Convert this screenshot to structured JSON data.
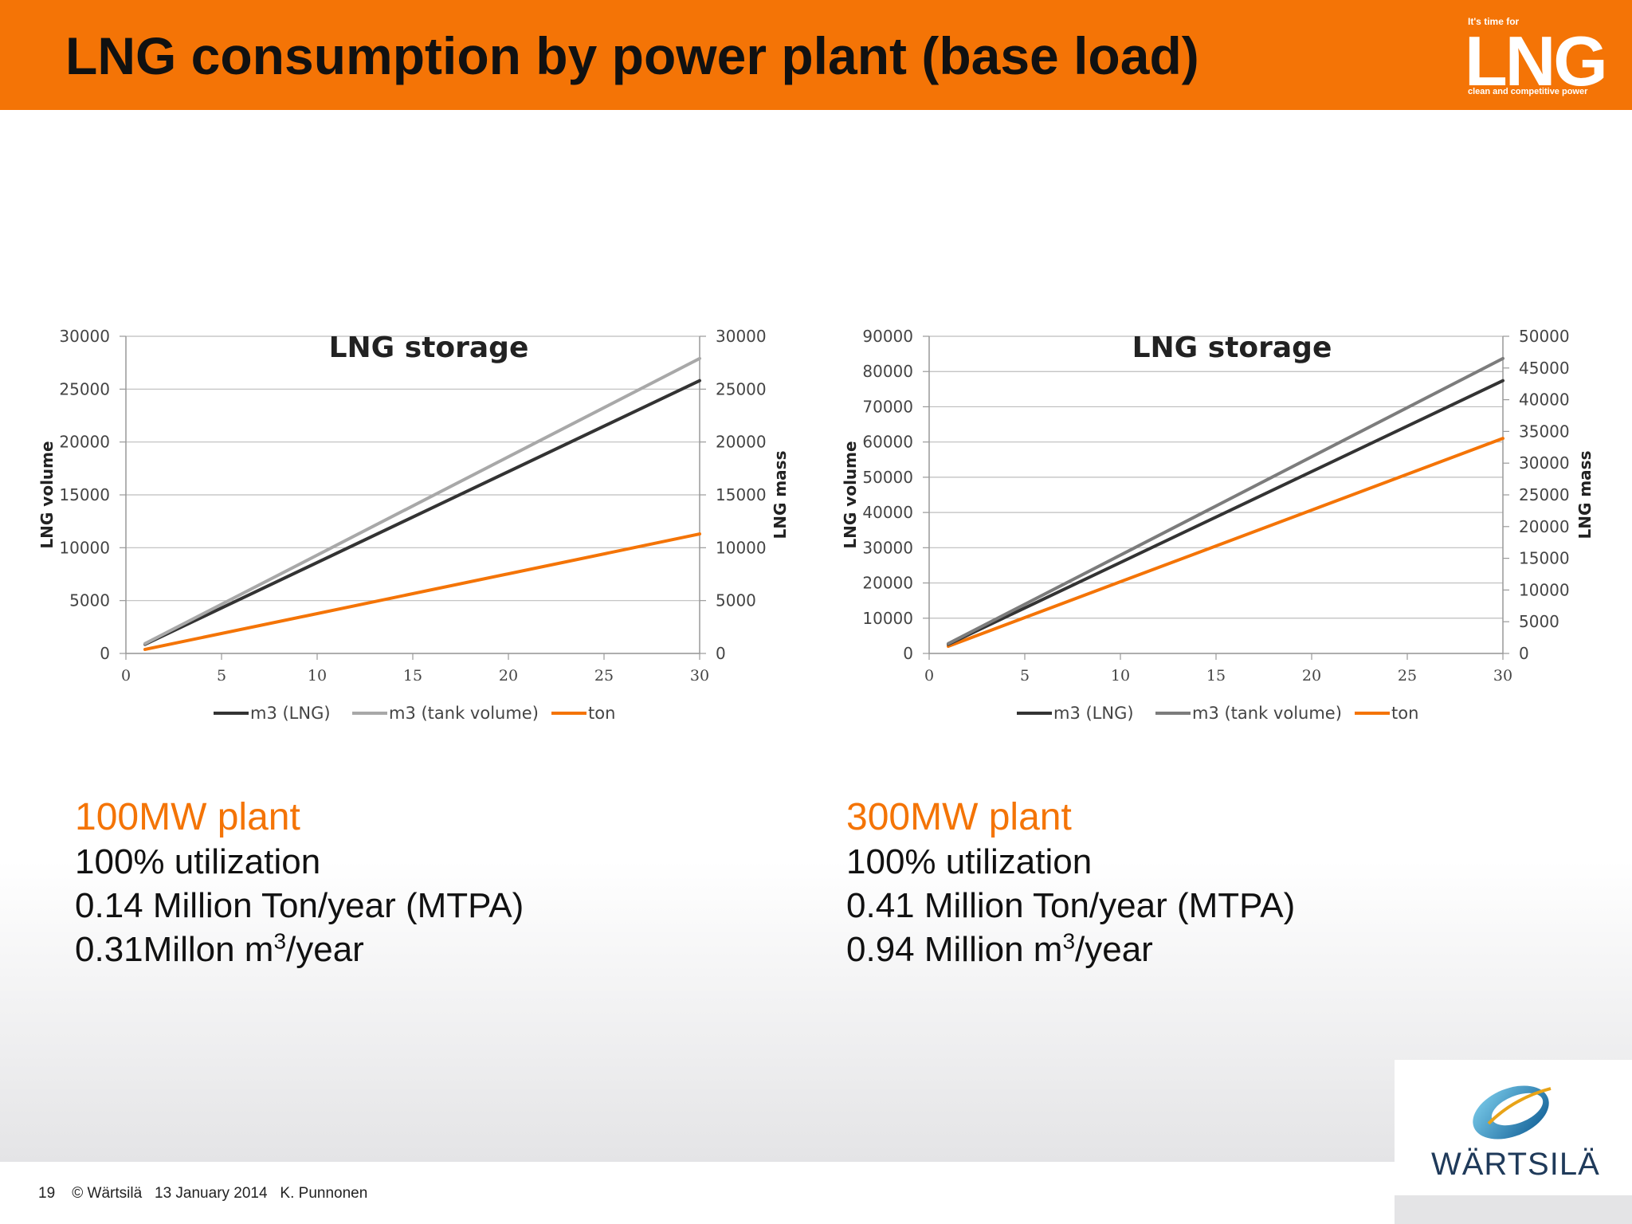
{
  "slide": {
    "title": "LNG consumption by power plant (base load)",
    "page_number": "19",
    "copyright": "© Wärtsilä",
    "date": "13 January 2014",
    "author": "K. Punnonen"
  },
  "badge": {
    "top_text": "It's time for",
    "word": "LNG",
    "bottom_text": "clean and competitive power"
  },
  "company_logo": {
    "name": "WÄRTSILÄ",
    "icon": "wartsila-swirl-logo"
  },
  "colors": {
    "brand_orange": "#f47406",
    "lng_series": "#333333",
    "tank_series": "#a8a8a8",
    "tank_series_right": "#7c7c7c",
    "ton_series": "#f47406"
  },
  "plants": [
    {
      "title": "100MW plant",
      "utilization": "100% utilization",
      "mtpa": "0.14 Million Ton/year (MTPA)",
      "volume_prefix": "0.31Millon m",
      "volume_sup": "3",
      "volume_suffix": "/year"
    },
    {
      "title": "300MW plant",
      "utilization": "100% utilization",
      "mtpa": "0.41 Million Ton/year (MTPA)",
      "volume_prefix": "0.94 Million m",
      "volume_sup": "3",
      "volume_suffix": "/year"
    }
  ],
  "chart_data": [
    {
      "type": "line",
      "title": "LNG storage",
      "xlabel": "",
      "ylabel": "LNG volume",
      "y2label": "LNG mass",
      "xlim": [
        0,
        30
      ],
      "ylim": [
        0,
        30000
      ],
      "y2lim": [
        0,
        30000
      ],
      "xticks": [
        "0",
        "5",
        "10",
        "15",
        "20",
        "25",
        "30"
      ],
      "yticks": [
        "0",
        "5000",
        "10000",
        "15000",
        "20000",
        "25000",
        "30000"
      ],
      "y2ticks": [
        "0",
        "5000",
        "10000",
        "15000",
        "20000",
        "25000",
        "30000"
      ],
      "grid": true,
      "legend_position": "bottom",
      "series": [
        {
          "name": "m3 (LNG)",
          "axis": "left",
          "x": [
            1,
            30
          ],
          "y": [
            860,
            25800
          ]
        },
        {
          "name": "m3 (tank volume)",
          "axis": "left",
          "x": [
            1,
            30
          ],
          "y": [
            930,
            27900
          ]
        },
        {
          "name": "ton",
          "axis": "right",
          "x": [
            1,
            30
          ],
          "y": [
            380,
            11300
          ]
        }
      ]
    },
    {
      "type": "line",
      "title": "LNG storage",
      "xlabel": "",
      "ylabel": "LNG volume",
      "y2label": "LNG mass",
      "xlim": [
        0,
        30
      ],
      "ylim": [
        0,
        90000
      ],
      "y2lim": [
        0,
        50000
      ],
      "xticks": [
        "0",
        "5",
        "10",
        "15",
        "20",
        "25",
        "30"
      ],
      "yticks": [
        "0",
        "10000",
        "20000",
        "30000",
        "40000",
        "50000",
        "60000",
        "70000",
        "80000",
        "90000"
      ],
      "y2ticks": [
        "0",
        "5000",
        "10000",
        "15000",
        "20000",
        "25000",
        "30000",
        "35000",
        "40000",
        "45000",
        "50000"
      ],
      "grid": true,
      "legend_position": "bottom",
      "series": [
        {
          "name": "m3 (LNG)",
          "axis": "left",
          "x": [
            1,
            30
          ],
          "y": [
            2580,
            77400
          ]
        },
        {
          "name": "m3 (tank volume)",
          "axis": "left",
          "x": [
            1,
            30
          ],
          "y": [
            2790,
            83700
          ]
        },
        {
          "name": "ton",
          "axis": "right",
          "x": [
            1,
            30
          ],
          "y": [
            1130,
            33900
          ]
        }
      ]
    }
  ]
}
